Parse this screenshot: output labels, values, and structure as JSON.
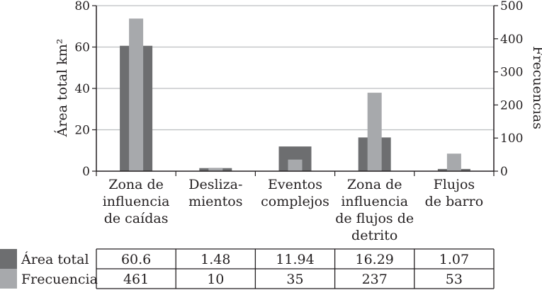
{
  "chart_data": {
    "type": "bar",
    "categories": [
      [
        "Zona de",
        "influencia",
        "de caídas"
      ],
      [
        "Desliza-",
        "mientos"
      ],
      [
        "Eventos",
        "complejos"
      ],
      [
        "Zona de",
        "influencia",
        "de flujos de",
        "detrito"
      ],
      [
        "Flujos",
        "de barro"
      ]
    ],
    "series": [
      {
        "name": "Área total",
        "axis": "left",
        "color": "#6d6e70",
        "values": [
          60.6,
          1.48,
          11.94,
          16.29,
          1.07
        ],
        "display": [
          "60.6",
          "1.48",
          "11.94",
          "16.29",
          "1.07"
        ]
      },
      {
        "name": "Frecuencia",
        "axis": "right",
        "color": "#a7a9ac",
        "values": [
          461,
          10,
          35,
          237,
          53
        ],
        "display": [
          "461",
          "10",
          "35",
          "237",
          "53"
        ]
      }
    ],
    "ylabel_left": "Área total km²",
    "ylabel_right": "Frecuencias",
    "ylim_left": [
      0,
      80
    ],
    "ylim_right": [
      0,
      500
    ],
    "yticks_left": [
      "0",
      "20",
      "40",
      "60",
      "80"
    ],
    "yticks_right": [
      "0",
      "100",
      "200",
      "300",
      "400",
      "500"
    ],
    "grid": true,
    "data_table": true
  }
}
